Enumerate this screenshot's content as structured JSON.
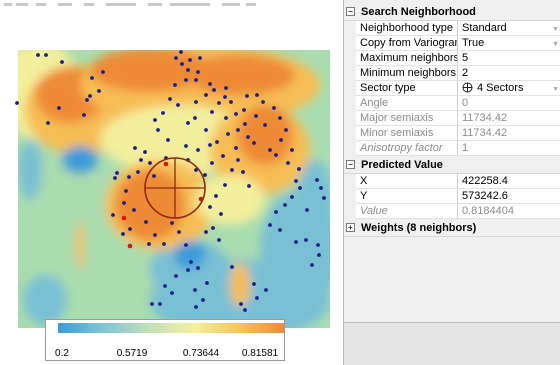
{
  "legend": {
    "labels": [
      "0.2",
      "0.5719",
      "0.73644",
      "0.81581"
    ],
    "colors": [
      "#3b9bd8",
      "#7fc7d6",
      "#bfe0b8",
      "#f4f0a0",
      "#f6c55c",
      "#ef8a3a"
    ]
  },
  "map": {
    "colors": {
      "low": "#3a9bd9",
      "low_mid": "#79c0d4",
      "mid": "#a9dcae",
      "mid_high": "#f3ef9c",
      "high": "#f6bd55",
      "max": "#ee8a34",
      "point": "#1b1f8c",
      "neighbor_point": "#e01010",
      "circle": "#8b2a0e"
    }
  },
  "props": {
    "search": {
      "title": "Search Neighborhood",
      "rows": [
        {
          "name": "Neighborhood type",
          "value": "Standard"
        },
        {
          "name": "Copy from Variogram",
          "value": "True"
        },
        {
          "name": "Maximum neighbors",
          "value": "5"
        },
        {
          "name": "Minimum neighbors",
          "value": "2"
        },
        {
          "name": "Sector type",
          "value": "4 Sectors"
        },
        {
          "name": "Angle",
          "value": "0"
        },
        {
          "name": "Major semiaxis",
          "value": "11734.42"
        },
        {
          "name": "Minor semiaxis",
          "value": "11734.42"
        },
        {
          "name": "Anisotropy factor",
          "value": "1"
        }
      ]
    },
    "predicted": {
      "title": "Predicted Value",
      "rows": [
        {
          "name": "X",
          "value": "422258.4"
        },
        {
          "name": "Y",
          "value": "573242.6"
        },
        {
          "name": "Value",
          "value": "0.8184404"
        }
      ]
    },
    "weights": {
      "title": "Weights (8 neighbors)"
    },
    "expander": {
      "minus": "−",
      "plus": "+"
    }
  }
}
